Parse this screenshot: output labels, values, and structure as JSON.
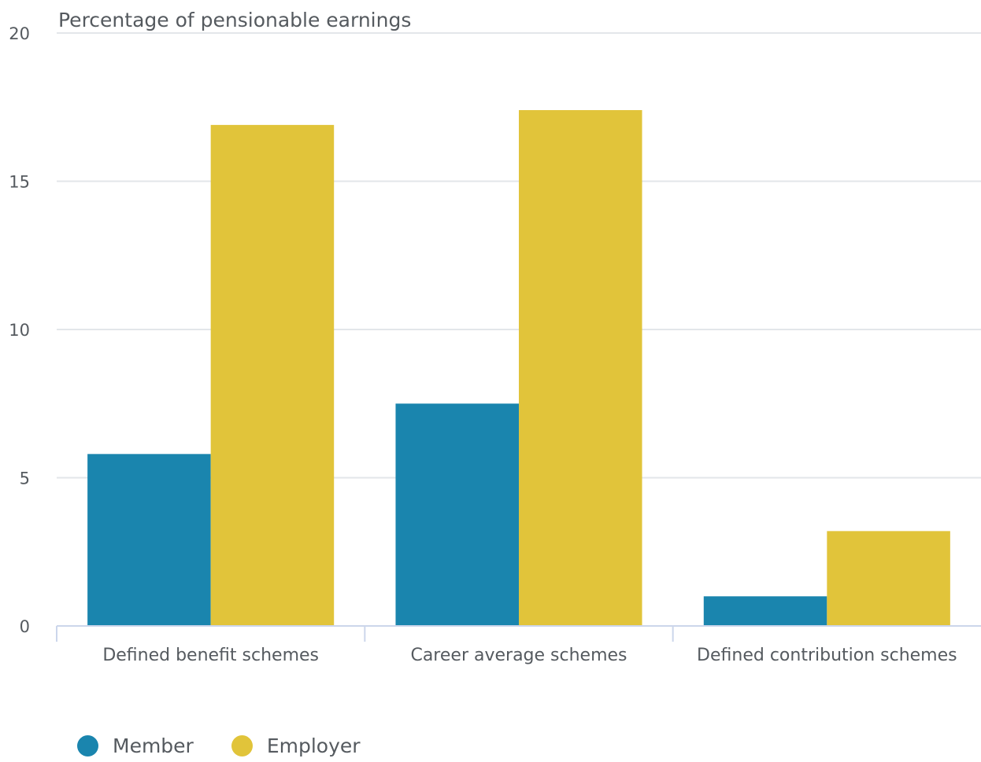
{
  "chart_data": {
    "type": "bar",
    "ylabel": "Percentage of pensionable earnings",
    "categories": [
      "Defined benefit schemes",
      "Career average schemes",
      "Defined contribution schemes"
    ],
    "series": [
      {
        "name": "Member",
        "color": "#1a85ae",
        "values": [
          5.8,
          7.5,
          1.0
        ]
      },
      {
        "name": "Employer",
        "color": "#e1c43a",
        "values": [
          16.9,
          17.4,
          3.2
        ]
      }
    ],
    "ylim": [
      0,
      20
    ],
    "yticks": [
      0,
      5,
      10,
      15,
      20
    ],
    "grid": true,
    "legend_position": "bottom-left"
  }
}
